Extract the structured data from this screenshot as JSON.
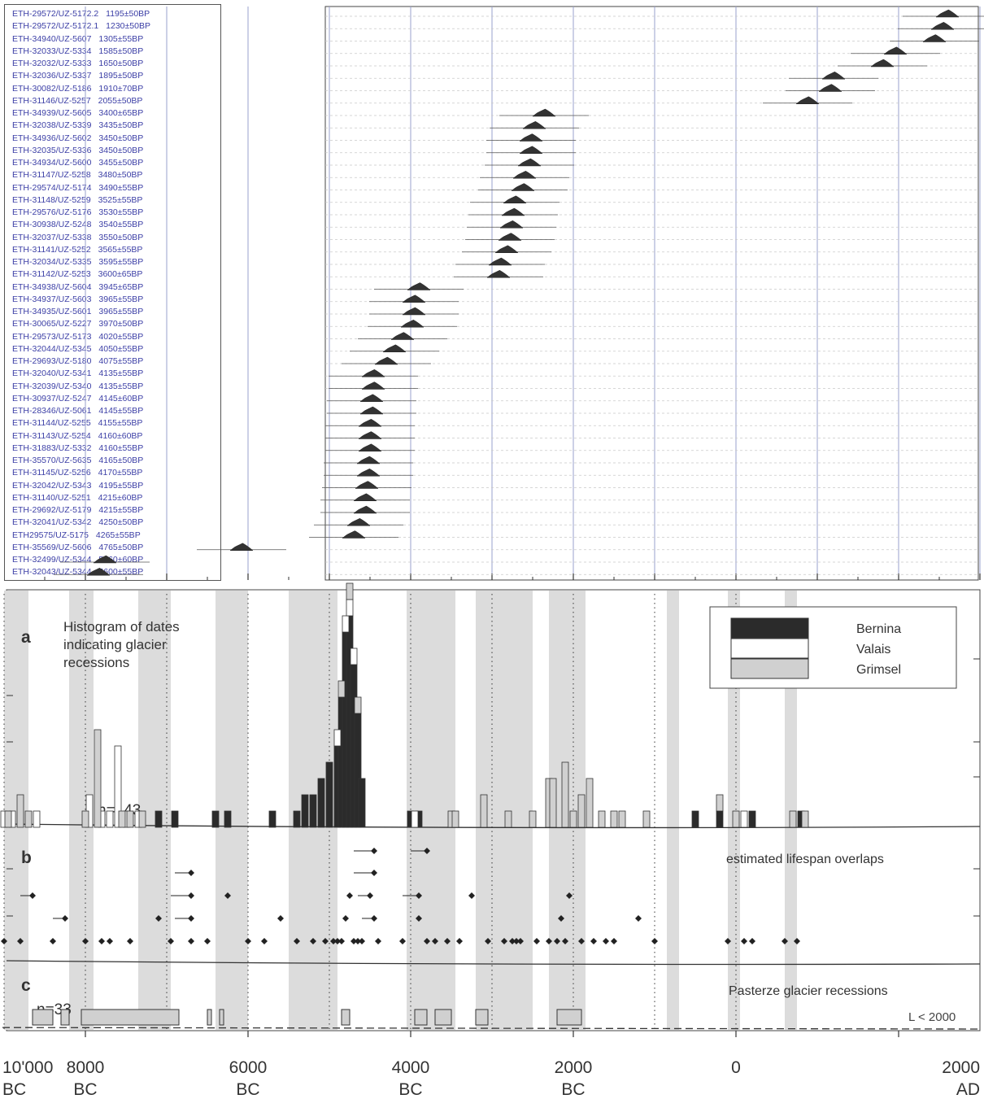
{
  "samples": [
    {
      "label": "ETH-29572/UZ-5172.2",
      "age": "1195±50BP",
      "cal": 800
    },
    {
      "label": "ETH-29572/UZ-5172.1",
      "age": "1230±50BP",
      "cal": 770
    },
    {
      "label": "ETH-34940/UZ-5607",
      "age": "1305±55BP",
      "cal": 720
    },
    {
      "label": "ETH-32033/UZ-5334",
      "age": "1585±50BP",
      "cal": 480
    },
    {
      "label": "ETH-32032/UZ-5333",
      "age": "1650±50BP",
      "cal": 400
    },
    {
      "label": "ETH-32036/UZ-5337",
      "age": "1895±50BP",
      "cal": 100
    },
    {
      "label": "ETH-30082/UZ-5186",
      "age": "1910±70BP",
      "cal": 80
    },
    {
      "label": "ETH-31146/UZ-5257",
      "age": "2055±50BP",
      "cal": -60
    },
    {
      "label": "ETH-34939/UZ-5605",
      "age": "3400±65BP",
      "cal": -1680
    },
    {
      "label": "ETH-32038/UZ-5339",
      "age": "3435±50BP",
      "cal": -1740
    },
    {
      "label": "ETH-34936/UZ-5602",
      "age": "3450±50BP",
      "cal": -1760
    },
    {
      "label": "ETH-32035/UZ-5336",
      "age": "3450±50BP",
      "cal": -1760
    },
    {
      "label": "ETH-34934/UZ-5600",
      "age": "3455±50BP",
      "cal": -1770
    },
    {
      "label": "ETH-31147/UZ-5258",
      "age": "3480±50BP",
      "cal": -1800
    },
    {
      "label": "ETH-29574/UZ-5174",
      "age": "3490±55BP",
      "cal": -1810
    },
    {
      "label": "ETH-31148/UZ-5259",
      "age": "3525±55BP",
      "cal": -1860
    },
    {
      "label": "ETH-29576/UZ-5176",
      "age": "3530±55BP",
      "cal": -1870
    },
    {
      "label": "ETH-30938/UZ-5248",
      "age": "3540±55BP",
      "cal": -1880
    },
    {
      "label": "ETH-32037/UZ-5338",
      "age": "3550±50BP",
      "cal": -1890
    },
    {
      "label": "ETH-31141/UZ-5252",
      "age": "3565±55BP",
      "cal": -1910
    },
    {
      "label": "ETH-32034/UZ-5335",
      "age": "3595±55BP",
      "cal": -1950
    },
    {
      "label": "ETH-31142/UZ-5253",
      "age": "3600±65BP",
      "cal": -1960
    },
    {
      "label": "ETH-34938/UZ-5604",
      "age": "3945±65BP",
      "cal": -2450
    },
    {
      "label": "ETH-34937/UZ-5603",
      "age": "3965±55BP",
      "cal": -2480
    },
    {
      "label": "ETH-34935/UZ-5601",
      "age": "3965±55BP",
      "cal": -2480
    },
    {
      "label": "ETH-30065/UZ-5227",
      "age": "3970±50BP",
      "cal": -2490
    },
    {
      "label": "ETH-29573/UZ-5173",
      "age": "4020±55BP",
      "cal": -2550
    },
    {
      "label": "ETH-32044/UZ-5345",
      "age": "4050±55BP",
      "cal": -2600
    },
    {
      "label": "ETH-29693/UZ-5180",
      "age": "4075±55BP",
      "cal": -2650
    },
    {
      "label": "ETH-32040/UZ-5341",
      "age": "4135±55BP",
      "cal": -2730
    },
    {
      "label": "ETH-32039/UZ-5340",
      "age": "4135±55BP",
      "cal": -2730
    },
    {
      "label": "ETH-30937/UZ-5247",
      "age": "4145±60BP",
      "cal": -2740
    },
    {
      "label": "ETH-28346/UZ-5061",
      "age": "4145±55BP",
      "cal": -2740
    },
    {
      "label": "ETH-31144/UZ-5255",
      "age": "4155±55BP",
      "cal": -2750
    },
    {
      "label": "ETH-31143/UZ-5254",
      "age": "4160±60BP",
      "cal": -2750
    },
    {
      "label": "ETH-31883/UZ-5332",
      "age": "4160±55BP",
      "cal": -2750
    },
    {
      "label": "ETH-35570/UZ-5635",
      "age": "4165±50BP",
      "cal": -2760
    },
    {
      "label": "ETH-31145/UZ-5256",
      "age": "4170±55BP",
      "cal": -2760
    },
    {
      "label": "ETH-32042/UZ-5343",
      "age": "4195±55BP",
      "cal": -2770
    },
    {
      "label": "ETH-31140/UZ-5251",
      "age": "4215±60BP",
      "cal": -2780
    },
    {
      "label": "ETH-29692/UZ-5179",
      "age": "4215±55BP",
      "cal": -2780
    },
    {
      "label": "ETH-32041/UZ-5342",
      "age": "4250±50BP",
      "cal": -2820
    },
    {
      "label": "ETH29575/UZ-5175",
      "age": "4265±55BP",
      "cal": -2850
    },
    {
      "label": "ETH-35569/UZ-5606",
      "age": "4765±50BP",
      "cal": -3540
    },
    {
      "label": "ETH-32499/UZ-5344",
      "age": "5560±60BP",
      "cal": -4380
    },
    {
      "label": "ETH-32043/UZ-5344",
      "age": "5600±55BP",
      "cal": -4420
    }
  ],
  "panel_a": {
    "letter": "a",
    "title_lines": [
      "Histogram of dates",
      "indicating glacier",
      "recessions"
    ],
    "n_label": "n=143",
    "legend": [
      {
        "name": "Bernina",
        "color": "#2b2b2b"
      },
      {
        "name": "Valais",
        "color": "#ffffff"
      },
      {
        "name": "Grimsel",
        "color": "#d0d0d0"
      }
    ]
  },
  "panel_b": {
    "letter": "b",
    "title": "estimated lifespan overlaps"
  },
  "panel_c": {
    "letter": "c",
    "title": "Pasterze glacier recessions",
    "n_label": "n=33",
    "line_label": "L < 2000"
  },
  "axis": {
    "ticks": [
      {
        "value": -8000,
        "lines": [
          "10'000",
          "BC"
        ]
      },
      {
        "value": -6000,
        "lines": [
          "8000",
          "BC"
        ]
      },
      {
        "value": -4000,
        "lines": [
          "6000",
          "BC"
        ]
      },
      {
        "value": -2000,
        "lines": [
          "4000",
          "BC"
        ]
      },
      {
        "value": 0,
        "lines": [
          "2000",
          "BC"
        ]
      },
      {
        "value": 2000,
        "lines": [
          "0",
          ""
        ]
      },
      {
        "value": 4000,
        "lines": [
          "2000",
          "AD"
        ]
      }
    ]
  },
  "shaded_bands": [
    [
      -7000,
      -6700
    ],
    [
      -6200,
      -5900
    ],
    [
      -5350,
      -4950
    ],
    [
      -4400,
      -4000
    ],
    [
      -3500,
      -2900
    ],
    [
      -2050,
      -1700
    ],
    [
      -1700,
      -1450
    ],
    [
      -1200,
      -500
    ],
    [
      -300,
      150
    ],
    [
      1150,
      1300
    ],
    [
      1900,
      2050
    ],
    [
      2600,
      2750
    ]
  ],
  "chart_data": [
    {
      "type": "scatter",
      "title": "",
      "xlabel": "",
      "ylabel": "",
      "xlim": [
        -4500,
        1250
      ],
      "x": [
        800,
        770,
        720,
        480,
        400,
        100,
        80,
        -60,
        -1680,
        -1740,
        -1760,
        -1760,
        -1770,
        -1800,
        -1810,
        -1860,
        -1870,
        -1880,
        -1890,
        -1910,
        -1950,
        -1960,
        -2450,
        -2480,
        -2480,
        -2490,
        -2550,
        -2600,
        -2650,
        -2730,
        -2730,
        -2740,
        -2740,
        -2750,
        -2750,
        -2750,
        -2760,
        -2760,
        -2770,
        -2780,
        -2780,
        -2820,
        -2850,
        -3540,
        -4380,
        -4420
      ]
    },
    {
      "type": "bar",
      "title": "Histogram of dates indicating glacier recessions",
      "n": 143,
      "series": [
        {
          "name": "Bernina",
          "values": [
            [
              -5100,
              1
            ],
            [
              -4900,
              1
            ],
            [
              -4400,
              1
            ],
            [
              -4250,
              1
            ],
            [
              -3700,
              1
            ],
            [
              -3400,
              1
            ],
            [
              -3300,
              2
            ],
            [
              -3200,
              2
            ],
            [
              -3100,
              3
            ],
            [
              -3000,
              4
            ],
            [
              -2900,
              5
            ],
            [
              -2850,
              8
            ],
            [
              -2800,
              12
            ],
            [
              -2750,
              13
            ],
            [
              -2700,
              10
            ],
            [
              -2650,
              7
            ],
            [
              -2600,
              3
            ],
            [
              -2000,
              1
            ],
            [
              -1900,
              1
            ],
            [
              1500,
              1
            ],
            [
              1800,
              1
            ],
            [
              2200,
              1
            ],
            [
              2800,
              1
            ]
          ]
        },
        {
          "name": "Valais",
          "values": [
            [
              -7000,
              1
            ],
            [
              -6900,
              1
            ],
            [
              -6600,
              1
            ],
            [
              -5950,
              2
            ],
            [
              -5800,
              1
            ],
            [
              -5700,
              1
            ],
            [
              -5600,
              5
            ],
            [
              -5500,
              1
            ],
            [
              -5350,
              1
            ],
            [
              -2900,
              1
            ],
            [
              -2800,
              1
            ],
            [
              -2750,
              1
            ],
            [
              -2700,
              1
            ],
            [
              -1950,
              1
            ],
            [
              2100,
              1
            ]
          ]
        },
        {
          "name": "Grimsel",
          "values": [
            [
              -6950,
              1
            ],
            [
              -6800,
              2
            ],
            [
              -6700,
              1
            ],
            [
              -6000,
              1
            ],
            [
              -5850,
              6
            ],
            [
              -5550,
              1
            ],
            [
              -5450,
              1
            ],
            [
              -5300,
              1
            ],
            [
              -2850,
              1
            ],
            [
              -2750,
              1
            ],
            [
              -2650,
              1
            ],
            [
              -1500,
              1
            ],
            [
              -1450,
              1
            ],
            [
              -1100,
              2
            ],
            [
              -800,
              1
            ],
            [
              -500,
              1
            ],
            [
              -300,
              3
            ],
            [
              -250,
              3
            ],
            [
              -100,
              4
            ],
            [
              0,
              1
            ],
            [
              100,
              2
            ],
            [
              200,
              3
            ],
            [
              350,
              1
            ],
            [
              500,
              1
            ],
            [
              600,
              1
            ],
            [
              900,
              1
            ],
            [
              1800,
              1
            ],
            [
              2000,
              1
            ],
            [
              2700,
              1
            ],
            [
              2850,
              1
            ]
          ]
        }
      ]
    },
    {
      "type": "scatter",
      "title": "estimated lifespan overlaps",
      "x": [
        -7000,
        -6800,
        -6400,
        -6000,
        -5800,
        -5700,
        -5450,
        -5100,
        -4950,
        -4700,
        -4500,
        -4250,
        -4000,
        -3800,
        -3600,
        -3400,
        -3200,
        -3050,
        -2950,
        -2900,
        -2850,
        -2800,
        -2750,
        -2700,
        -2650,
        -2600,
        -2400,
        -2100,
        -1900,
        -1800,
        -1700,
        -1550,
        -1400,
        -1250,
        -1050,
        -850,
        -750,
        -700,
        -650,
        -450,
        -300,
        -200,
        -150,
        -100,
        -50,
        100,
        250,
        400,
        500,
        800,
        1000,
        1900,
        2100,
        2200,
        2600,
        2750
      ]
    },
    {
      "type": "bar",
      "title": "Pasterze glacier recessions",
      "n": 33,
      "line_label": "L < 2000",
      "intervals": [
        [
          -6650,
          -6400
        ],
        [
          -6300,
          -6200
        ],
        [
          -6050,
          -4850
        ],
        [
          -4500,
          -4450
        ],
        [
          -4350,
          -4300
        ],
        [
          -2850,
          -2750
        ],
        [
          -1950,
          -1800
        ],
        [
          -1700,
          -1500
        ],
        [
          -1200,
          -1050
        ],
        [
          -200,
          100
        ]
      ]
    }
  ]
}
